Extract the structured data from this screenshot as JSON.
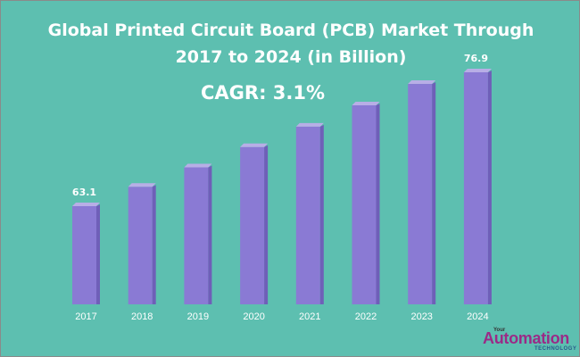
{
  "chart_data": {
    "type": "bar",
    "title_line1": "Global Printed Circuit Board (PCB) Market Through",
    "title_line2": "2017 to 2024 (in Billion)",
    "annotation": "CAGR: 3.1%",
    "categories": [
      "2017",
      "2018",
      "2019",
      "2020",
      "2021",
      "2022",
      "2023",
      "2024"
    ],
    "values": [
      63.1,
      65.1,
      67.1,
      69.2,
      71.3,
      73.5,
      75.7,
      76.9
    ],
    "data_labels": [
      {
        "index": 0,
        "text": "63.1"
      },
      {
        "index": 7,
        "text": "76.9"
      }
    ],
    "grid": false,
    "legend": "none",
    "colors": {
      "background": "#5dbfb0",
      "bar_front": "#8a7ad4",
      "bar_top": "#b8aee6",
      "bar_side": "#6f5fb8",
      "text": "#ffffff"
    }
  },
  "logo": {
    "prefix": "Your",
    "name": "Automation",
    "suffix": "TECHNOLOGY"
  }
}
